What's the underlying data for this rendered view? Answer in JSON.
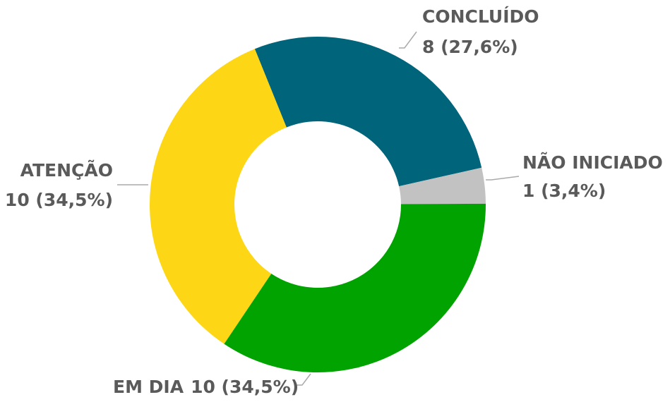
{
  "chart_data": {
    "type": "donut",
    "categories": [
      "CONCLUÍDO",
      "NÃO INICIADO",
      "EM DIA",
      "ATENÇÃO"
    ],
    "values": [
      8,
      1,
      10,
      10
    ],
    "value_labels": [
      "8 (27,6%)",
      "1 (3,4%)",
      "10 (34,5%)",
      "10 (34,5%)"
    ],
    "colors": [
      "#00657b",
      "#c2c2c2",
      "#00a300",
      "#fdd716"
    ]
  }
}
